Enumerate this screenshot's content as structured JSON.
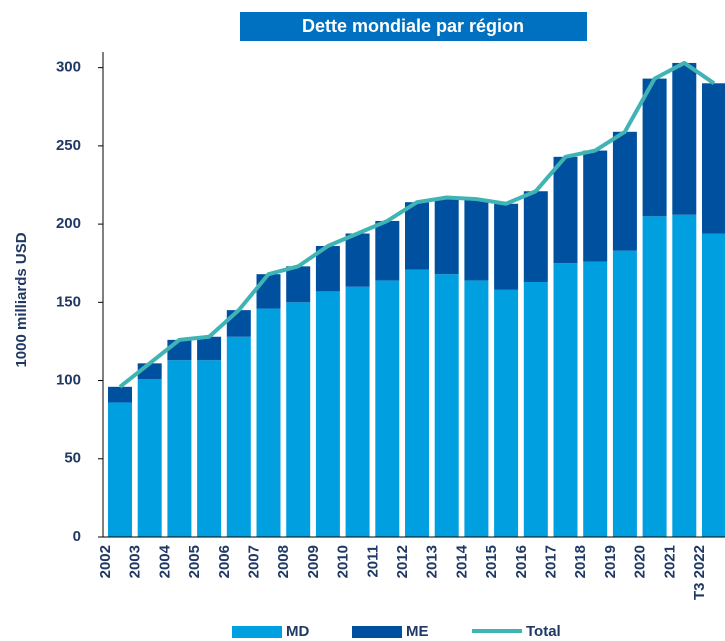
{
  "chart_data": {
    "type": "bar",
    "stacked": true,
    "title": "Dette mondiale par région",
    "y_label": "1000 milliards USD",
    "categories": [
      "2002",
      "2003",
      "2004",
      "2005",
      "2006",
      "2007",
      "2008",
      "2009",
      "2010",
      "2011",
      "2012",
      "2013",
      "2014",
      "2015",
      "2016",
      "2017",
      "2018",
      "2019",
      "2020",
      "2021",
      "T3 2022"
    ],
    "series": [
      {
        "name": "MD",
        "type": "bar",
        "color": "#00a0e0",
        "values": [
          86,
          101,
          113,
          113,
          128,
          146,
          150,
          157,
          160,
          164,
          171,
          168,
          164,
          158,
          163,
          175,
          176,
          183,
          205,
          206,
          194
        ]
      },
      {
        "name": "ME",
        "type": "bar",
        "color": "#0050a0",
        "values": [
          10,
          10,
          13,
          15,
          17,
          22,
          23,
          29,
          34,
          38,
          43,
          49,
          52,
          55,
          58,
          68,
          71,
          76,
          88,
          97,
          96
        ]
      },
      {
        "name": "Total",
        "type": "line",
        "color": "#40b4b4",
        "values": [
          96,
          111,
          126,
          128,
          145,
          168,
          173,
          186,
          194,
          202,
          214,
          217,
          216,
          213,
          221,
          243,
          247,
          259,
          293,
          303,
          290
        ]
      }
    ],
    "ylim": [
      0,
      310
    ],
    "yticks": [
      0,
      50,
      100,
      150,
      200,
      250,
      300
    ],
    "grid": false
  }
}
